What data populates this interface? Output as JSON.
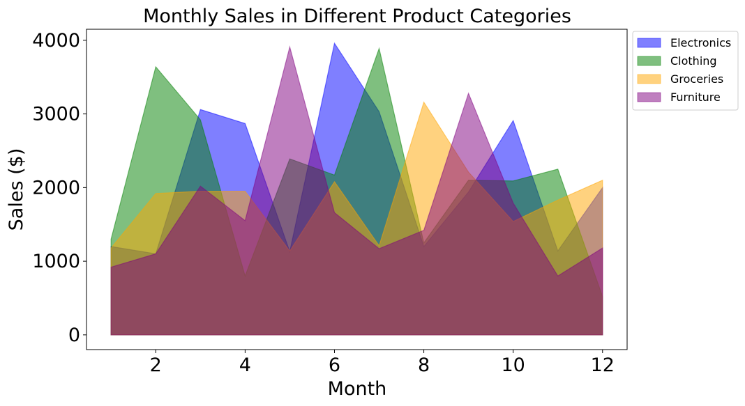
{
  "chart_data": {
    "type": "area",
    "title": "Monthly Sales in Different Product Categories",
    "xlabel": "Month",
    "ylabel": "Sales ($)",
    "xlim": [
      0.45,
      12.55
    ],
    "ylim": [
      -200,
      4150
    ],
    "x": [
      1,
      2,
      3,
      4,
      5,
      6,
      7,
      8,
      9,
      10,
      11,
      12
    ],
    "xticks": [
      2,
      4,
      6,
      8,
      10,
      12
    ],
    "yticks": [
      0,
      1000,
      2000,
      3000,
      4000
    ],
    "grid": false,
    "legend_position": "outside-top-right",
    "series": [
      {
        "name": "Electronics",
        "color": "#0000ff",
        "alpha": 0.5,
        "values": [
          1200,
          1100,
          3060,
          2870,
          1130,
          3960,
          3030,
          1200,
          1940,
          2910,
          1140,
          2000
        ]
      },
      {
        "name": "Clothing",
        "color": "#008000",
        "alpha": 0.5,
        "values": [
          1300,
          3640,
          2920,
          800,
          2390,
          2170,
          3890,
          1250,
          2100,
          2090,
          2250,
          520
        ]
      },
      {
        "name": "Groceries",
        "color": "#ffa500",
        "alpha": 0.5,
        "values": [
          1180,
          1920,
          1950,
          1950,
          1140,
          2080,
          1210,
          3160,
          2210,
          1540,
          1830,
          2100
        ]
      },
      {
        "name": "Furniture",
        "color": "#800080",
        "alpha": 0.5,
        "values": [
          920,
          1100,
          2020,
          1550,
          3910,
          1660,
          1170,
          1420,
          3280,
          1790,
          800,
          1180
        ]
      }
    ]
  }
}
